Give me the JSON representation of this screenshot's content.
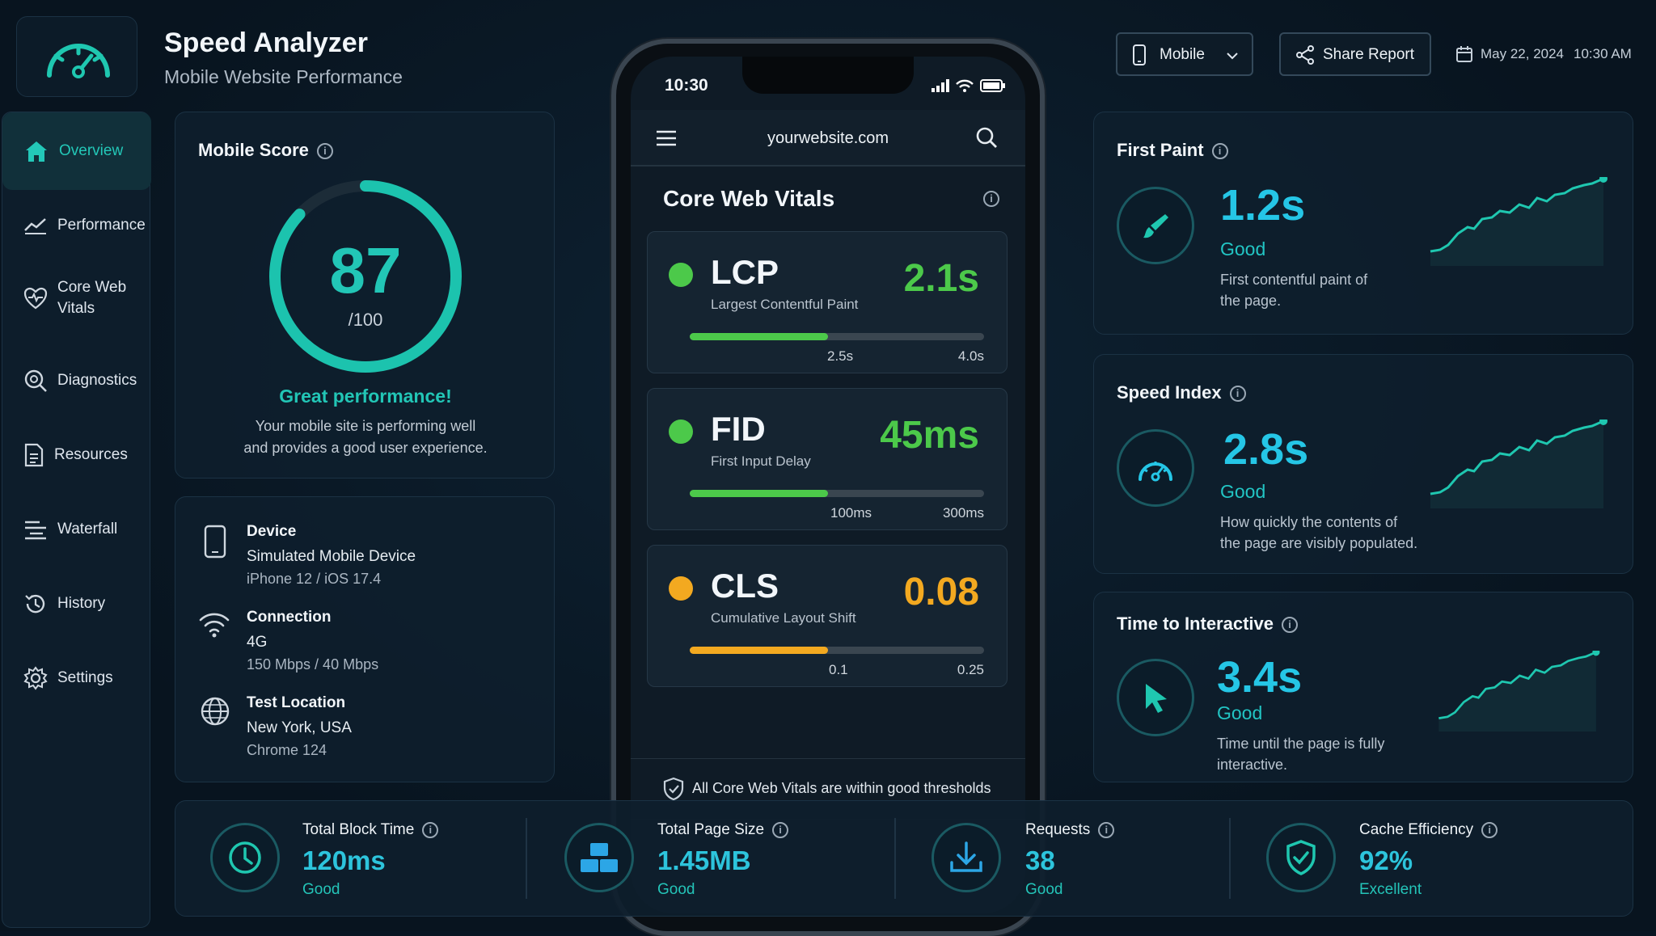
{
  "app": {
    "title": "Speed Analyzer",
    "subtitle": "Mobile Website Performance"
  },
  "header": {
    "device_select": "Mobile",
    "share_label": "Share Report",
    "date": "May 22, 2024",
    "time": "10:30 AM"
  },
  "sidebar": {
    "items": [
      {
        "label": "Overview",
        "icon": "home-icon",
        "active": true
      },
      {
        "label": "Performance",
        "icon": "trend-icon"
      },
      {
        "label": "Core Web\nVitals",
        "icon": "heart-pulse-icon"
      },
      {
        "label": "Diagnostics",
        "icon": "search-icon"
      },
      {
        "label": "Resources",
        "icon": "document-icon"
      },
      {
        "label": "Waterfall",
        "icon": "waterfall-icon"
      },
      {
        "label": "History",
        "icon": "history-icon"
      },
      {
        "label": "Settings",
        "icon": "gear-icon"
      }
    ]
  },
  "score": {
    "title": "Mobile Score",
    "value": "87",
    "max": "/100",
    "fraction": 0.87,
    "headline": "Great performance!",
    "line1": "Your mobile site is performing well",
    "line2": "and provides a good user experience."
  },
  "info": {
    "device": {
      "label": "Device",
      "value": "Simulated Mobile Device",
      "detail": "iPhone 12 / iOS 17.4"
    },
    "connection": {
      "label": "Connection",
      "value": "4G",
      "detail": "150 Mbps / 40 Mbps"
    },
    "location": {
      "label": "Test Location",
      "value": "New York, USA",
      "detail": "Chrome 124"
    }
  },
  "phone": {
    "time": "10:30",
    "url": "yourwebsite.com",
    "section_title": "Core Web Vitals",
    "footer": "All Core Web Vitals are within good thresholds"
  },
  "vitals": [
    {
      "name": "LCP",
      "desc": "Largest Contentful Paint",
      "value": "2.1s",
      "good": "2.5s",
      "poor": "4.0s",
      "fill": 0.47,
      "color": "#4cc94a"
    },
    {
      "name": "FID",
      "desc": "First Input Delay",
      "value": "45ms",
      "good": "100ms",
      "poor": "300ms",
      "fill": 0.47,
      "color": "#4cc94a"
    },
    {
      "name": "CLS",
      "desc": "Cumulative Layout Shift",
      "value": "0.08",
      "good": "0.1",
      "poor": "0.25",
      "fill": 0.47,
      "color": "#f3a920"
    }
  ],
  "metrics": [
    {
      "title": "First Paint",
      "value": "1.2s",
      "rating": "Good",
      "desc1": "First contentful paint of",
      "desc2": "the page.",
      "icon": "brush-icon"
    },
    {
      "title": "Speed Index",
      "value": "2.8s",
      "rating": "Good",
      "desc1": "How quickly the contents of",
      "desc2": "the page are visibly populated.",
      "icon": "gauge-icon"
    },
    {
      "title": "Time to Interactive",
      "value": "3.4s",
      "rating": "Good",
      "desc1": "Time until the page is fully",
      "desc2": "interactive.",
      "icon": "cursor-icon"
    }
  ],
  "bottom": [
    {
      "label": "Total Block Time",
      "value": "120ms",
      "rating": "Good",
      "icon": "clock-icon"
    },
    {
      "label": "Total Page Size",
      "value": "1.45MB",
      "rating": "Good",
      "icon": "blocks-icon"
    },
    {
      "label": "Requests",
      "value": "38",
      "rating": "Good",
      "icon": "download-icon"
    },
    {
      "label": "Cache Efficiency",
      "value": "92%",
      "rating": "Excellent",
      "icon": "shield-check-icon"
    }
  ],
  "colors": {
    "accent": "#1fc7b0",
    "value_blue": "#25c6e6",
    "good_green": "#4cc94a",
    "warn_amber": "#f3a920",
    "bg": "#081522"
  }
}
